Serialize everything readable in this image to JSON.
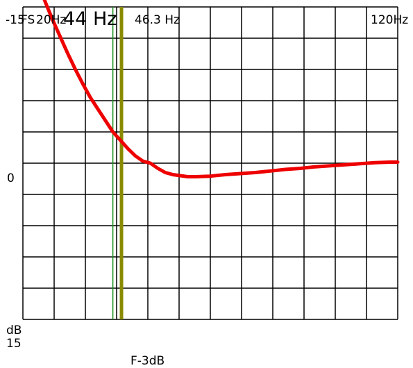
{
  "labels": {
    "top_left": "-15",
    "fs_label": "FS",
    "start_freq": "20Hz",
    "f_measure": "44 Hz",
    "f_3db_value": "46.3 Hz",
    "end_freq": "120Hz",
    "zero": "0",
    "db_unit": "dB",
    "bottom_value": "15",
    "f3db_caption": "F-3dB"
  },
  "colors": {
    "grid": "#000000",
    "curve": "#ee0000",
    "marker_green": "#1a8f1a",
    "marker_olive": "#8a8a00"
  },
  "chart_data": {
    "type": "line",
    "title": "",
    "xlabel": "",
    "ylabel": "dB",
    "x_range_hz": [
      20,
      120
    ],
    "y_range_db": [
      -15,
      15
    ],
    "grid": true,
    "vertical_divisions": 12,
    "horizontal_divisions": 10,
    "markers": [
      {
        "name": "FS",
        "frequency_hz": 44
      },
      {
        "name": "F-3dB",
        "frequency_hz": 46.3
      }
    ],
    "series": [
      {
        "x": [
          26.5,
          28,
          30,
          32,
          34,
          36,
          38,
          40,
          42,
          44,
          46,
          48,
          50,
          52,
          54,
          56,
          58,
          60,
          62,
          64,
          66,
          70,
          74,
          78,
          82,
          86,
          90,
          94,
          98,
          102,
          106,
          110,
          114,
          118,
          120
        ],
        "values": [
          -15,
          -13.7,
          -12.1,
          -10.5,
          -9,
          -7.6,
          -6.3,
          -5.2,
          -4.1,
          -3.0,
          -2.2,
          -1.4,
          -0.7,
          -0.2,
          0.0,
          0.5,
          0.9,
          1.1,
          1.2,
          1.3,
          1.3,
          1.25,
          1.1,
          1.0,
          0.9,
          0.75,
          0.6,
          0.5,
          0.35,
          0.25,
          0.15,
          0.05,
          -0.05,
          -0.1,
          -0.1
        ]
      }
    ]
  }
}
